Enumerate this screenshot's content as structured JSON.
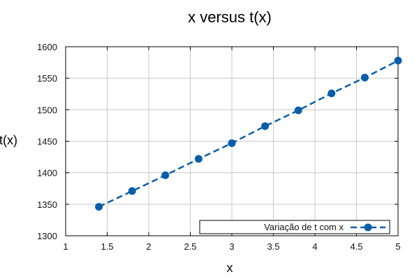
{
  "chart_data": {
    "type": "line",
    "title": "x versus t(x)",
    "xlabel": "x",
    "ylabel": "t(x)",
    "xlim": [
      1,
      5
    ],
    "ylim": [
      1300,
      1600
    ],
    "x_ticks": [
      "1",
      "1.5",
      "2",
      "2.5",
      "3",
      "3.5",
      "4",
      "4.5",
      "5"
    ],
    "y_ticks": [
      "1300",
      "1350",
      "1400",
      "1450",
      "1500",
      "1550",
      "1600"
    ],
    "legend_position": "bottom-right",
    "grid": true,
    "series": [
      {
        "name": "Variação de t com x",
        "color": "#0a5da8",
        "line_style": "dashed",
        "marker": "circle",
        "x": [
          1.4,
          1.8,
          2.2,
          2.6,
          3.0,
          3.4,
          3.8,
          4.2,
          4.6,
          5.0
        ],
        "y": [
          1346,
          1371,
          1396,
          1422,
          1447,
          1474,
          1499,
          1526,
          1551,
          1578
        ]
      }
    ]
  }
}
